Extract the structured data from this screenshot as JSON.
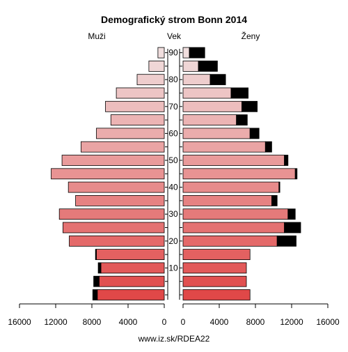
{
  "chart_data": {
    "type": "bar",
    "title": "Demografický strom Bonn 2014",
    "left_label": "Muži",
    "center_label": "Vek",
    "right_label": "Ženy",
    "footer": "www.iz.sk/RDEA22",
    "xlim": [
      0,
      16000
    ],
    "x_ticks": [
      16000,
      12000,
      8000,
      4000,
      0
    ],
    "x_tick_labels": [
      "16000",
      "12000",
      "8000",
      "4000",
      "0"
    ],
    "x_ticks_right": [
      0,
      4000,
      8000,
      12000,
      16000
    ],
    "x_tick_labels_right": [
      "0",
      "4000",
      "8000",
      "12000",
      "16000"
    ],
    "age_groups": [
      "0-4",
      "5-9",
      "10-14",
      "15-19",
      "20-24",
      "25-29",
      "30-34",
      "35-39",
      "40-44",
      "45-49",
      "50-54",
      "55-59",
      "60-64",
      "65-69",
      "70-74",
      "75-79",
      "80-84",
      "85-89",
      "90+"
    ],
    "age_tick_values": [
      "10",
      "20",
      "30",
      "40",
      "50",
      "60",
      "70",
      "80",
      "90"
    ],
    "age_tick_groups": [
      2,
      4,
      6,
      8,
      10,
      12,
      14,
      16,
      18
    ],
    "series": [
      {
        "name": "Muži",
        "values": [
          7400,
          7200,
          7000,
          7500,
          10500,
          11200,
          11600,
          9800,
          10600,
          12500,
          11300,
          9200,
          7500,
          5900,
          6500,
          5300,
          3000,
          1700,
          700
        ],
        "excess": [
          500,
          600,
          300,
          100,
          0,
          0,
          0,
          0,
          0,
          0,
          0,
          0,
          0,
          0,
          0,
          0,
          0,
          0,
          0
        ]
      },
      {
        "name": "Ženy",
        "values": [
          7400,
          7000,
          7000,
          7400,
          10400,
          11200,
          11600,
          9800,
          10600,
          12400,
          11200,
          9100,
          7400,
          5900,
          6500,
          5300,
          3000,
          1700,
          700
        ],
        "excess": [
          0,
          0,
          0,
          0,
          2100,
          1800,
          800,
          600,
          100,
          200,
          400,
          700,
          1000,
          1200,
          1700,
          1900,
          1700,
          2100,
          1700
        ]
      }
    ],
    "colors": {
      "young": "#e04848",
      "old": "#f0dede",
      "excess": "#000000"
    }
  }
}
